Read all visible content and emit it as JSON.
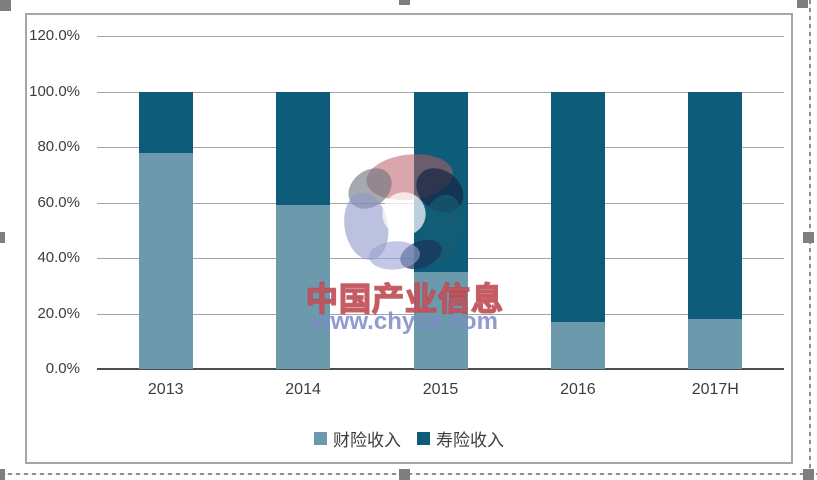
{
  "chart_data": {
    "type": "bar",
    "stacked": true,
    "percent_stacked": true,
    "title": "",
    "categories": [
      "2013",
      "2014",
      "2015",
      "2016",
      "2017H"
    ],
    "series": [
      {
        "key": "property-insurance",
        "name": "财险收入",
        "color": "#6d99ad",
        "values": [
          78,
          59,
          35,
          17,
          18
        ]
      },
      {
        "key": "life-insurance",
        "name": "寿险收入",
        "color": "#0d5c79",
        "values": [
          22,
          41,
          65,
          83,
          82
        ]
      }
    ],
    "unit": "%",
    "ylim": [
      0,
      120
    ],
    "ytick_step": 20,
    "ytick_labels": [
      "0.0%",
      "20.0%",
      "40.0%",
      "60.0%",
      "80.0%",
      "100.0%",
      "120.0%"
    ],
    "grid": true,
    "legend_position": "bottom"
  },
  "watermark": {
    "logo_name": "chyxx-swirl-logo",
    "title_text": "中国产业信息",
    "url_text": "www.chyxx.com"
  },
  "colors": {
    "series_property": "#6d99ad",
    "series_life": "#0d5c79",
    "gridline": "#a5a5a5",
    "axis_line": "#4d4d4d",
    "tick_text": "#3d3d3d",
    "chart_border": "#a6a6a6",
    "selection_handle": "#7f7f7f",
    "watermark_red": "#ba3e48",
    "watermark_blue": "#7d89c8"
  }
}
